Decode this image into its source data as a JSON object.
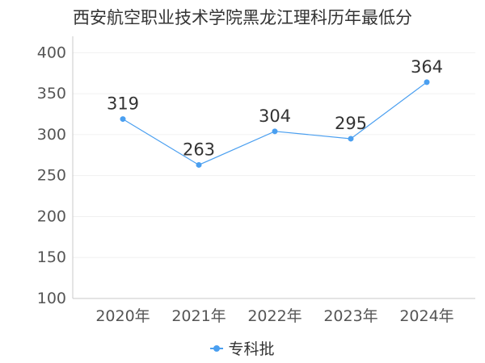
{
  "chart_data": {
    "type": "line",
    "title": "西安航空职业技术学院黑龙江理科历年最低分",
    "categories": [
      "2020年",
      "2021年",
      "2022年",
      "2023年",
      "2024年"
    ],
    "series": [
      {
        "name": "专科批",
        "values": [
          319,
          263,
          304,
          295,
          364
        ],
        "color": "#4a9ff0"
      }
    ],
    "ylim": [
      100,
      420
    ],
    "yticks": [
      100,
      150,
      200,
      250,
      300,
      350,
      400
    ],
    "xlabel": "",
    "ylabel": "",
    "grid": true,
    "legend_position": "bottom-center",
    "axis_color": "#c8c8c8",
    "grid_color": "#f0f0f0"
  }
}
